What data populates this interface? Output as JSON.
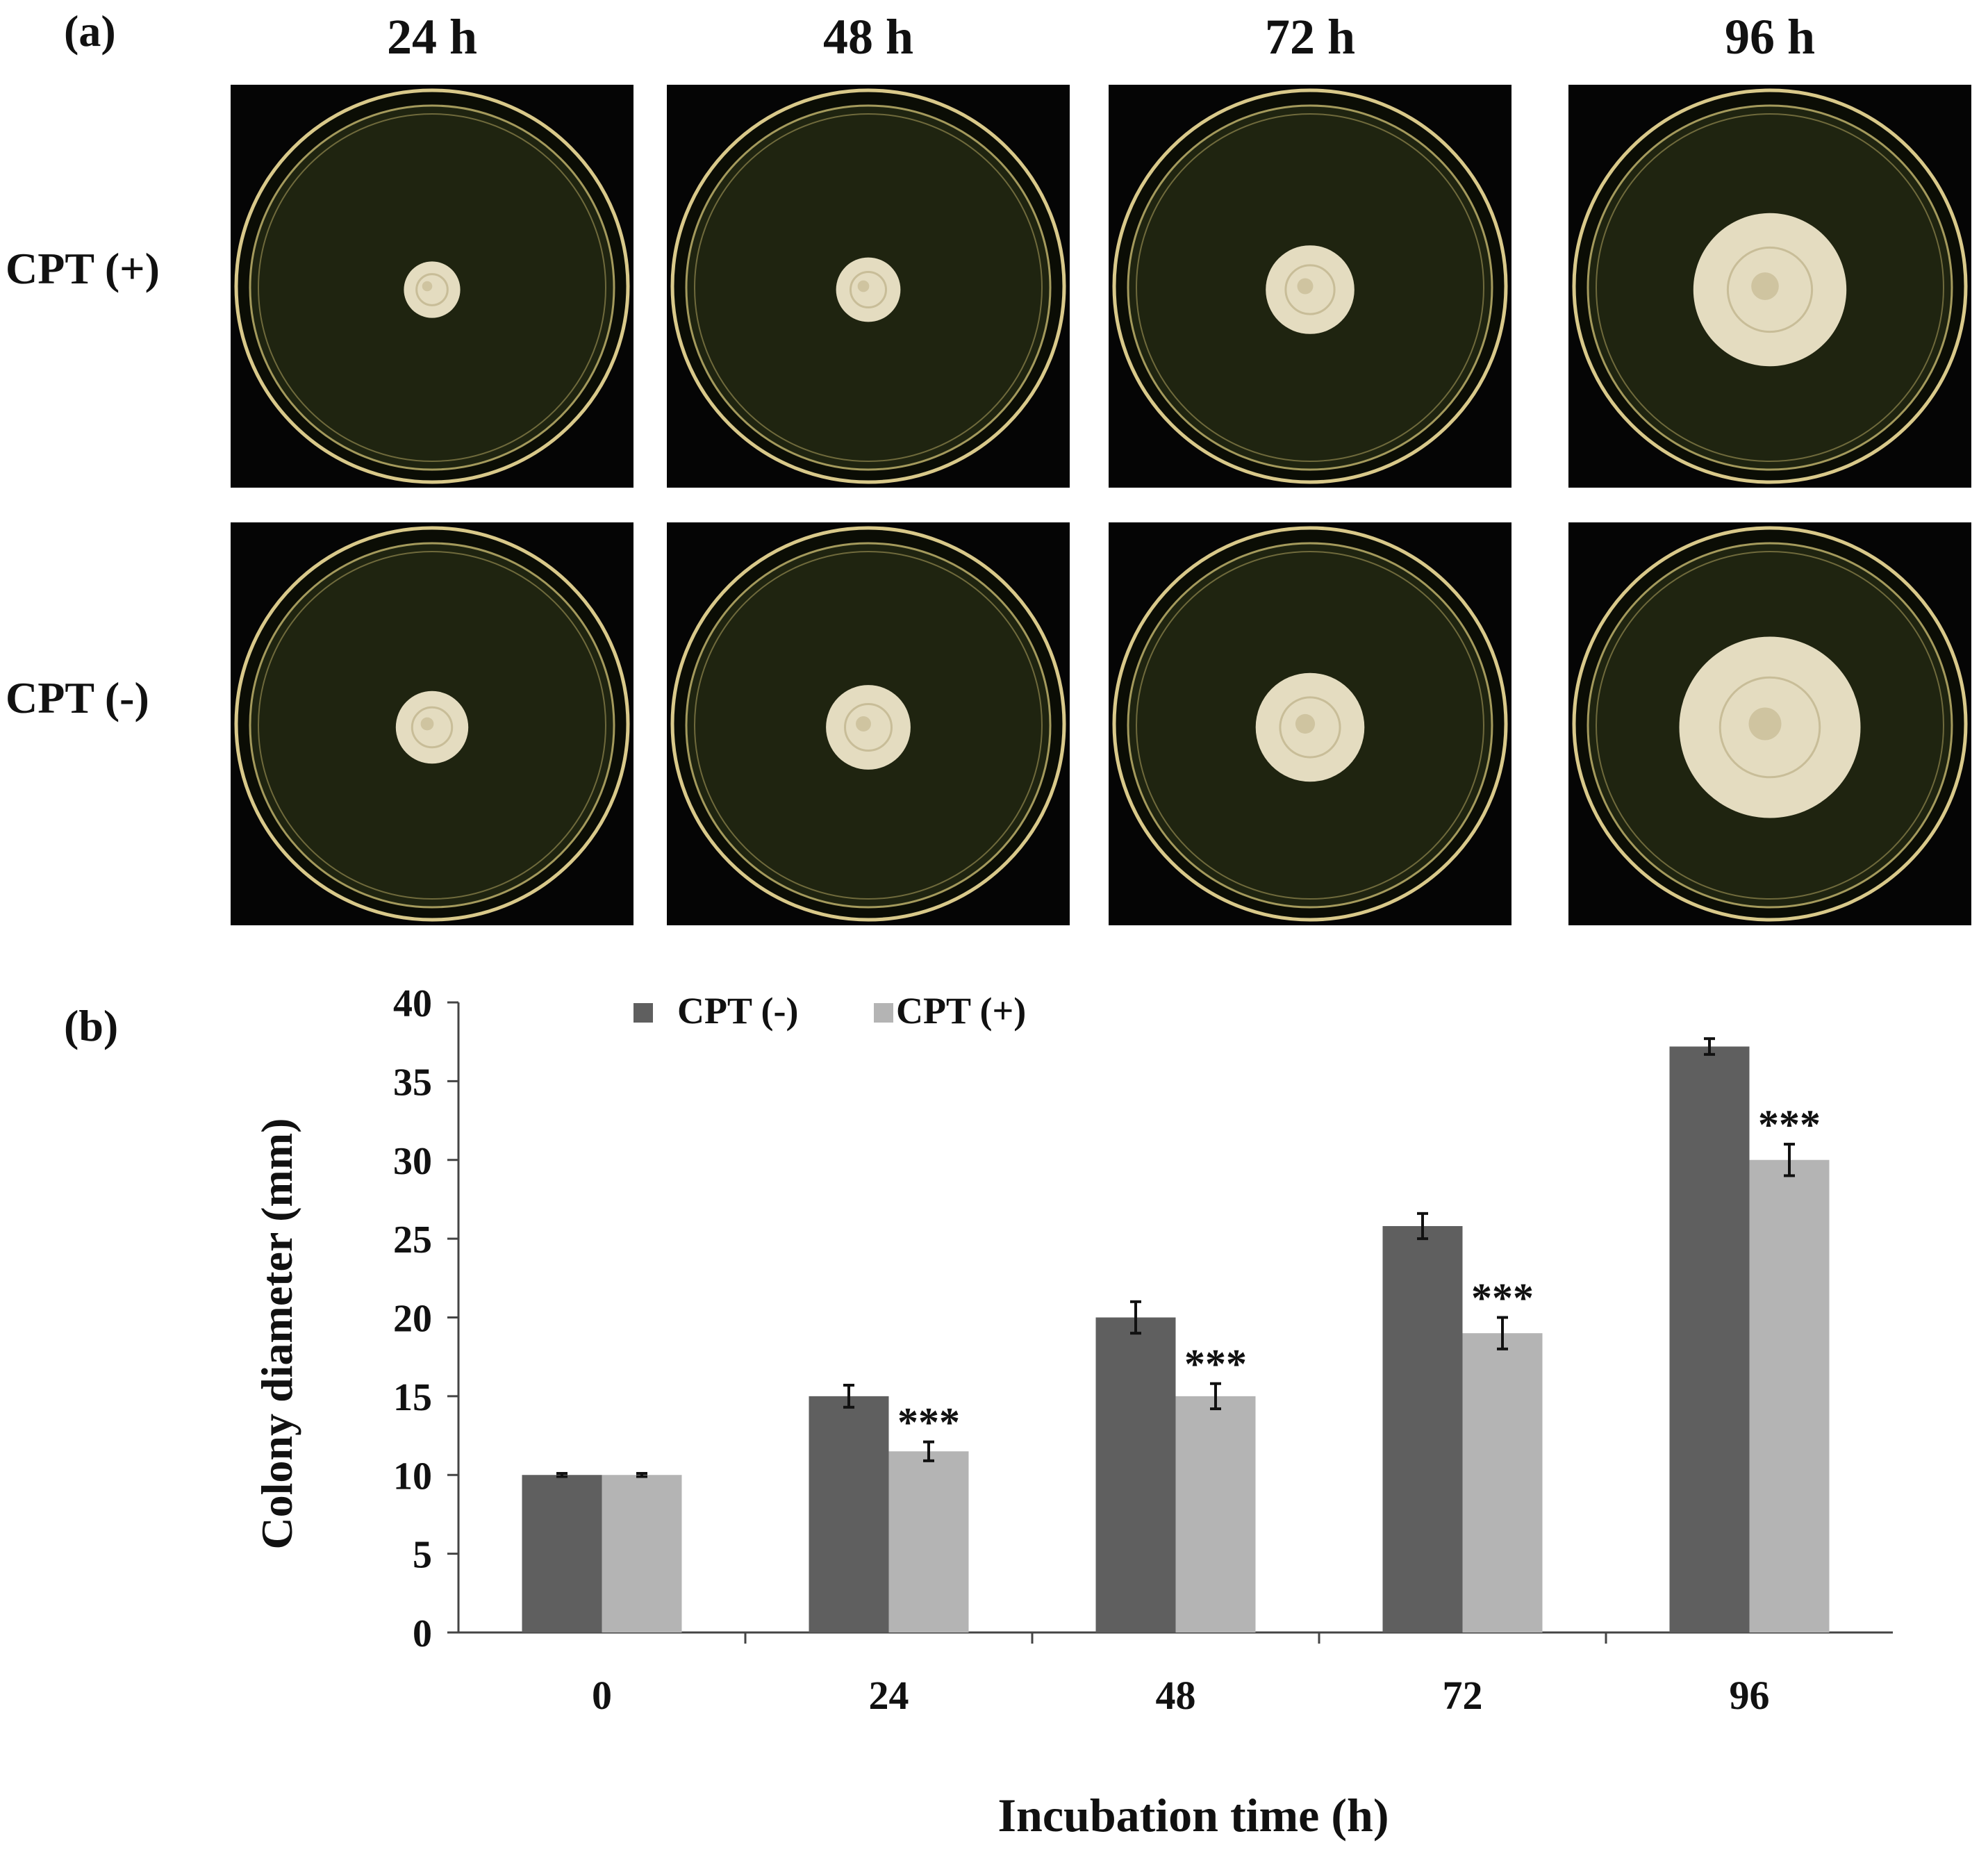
{
  "panel_a": {
    "label": "(a)",
    "columns": [
      "24 h",
      "48 h",
      "72 h",
      "96 h"
    ],
    "rows": [
      {
        "label": "CPT (+)",
        "colony_relative_size": [
          0.14,
          0.16,
          0.22,
          0.38
        ]
      },
      {
        "label": "CPT (-)",
        "colony_relative_size": [
          0.18,
          0.21,
          0.27,
          0.45
        ]
      }
    ]
  },
  "panel_b": {
    "label": "(b)"
  },
  "colors": {
    "cpt_minus": "#5f5f5f",
    "cpt_plus": "#b4b4b4",
    "agar": "#1f2410",
    "rim": "#d9c98a",
    "colony": "#e4dcc0"
  },
  "chart_data": {
    "type": "bar",
    "categories": [
      "0",
      "24",
      "48",
      "72",
      "96"
    ],
    "series": [
      {
        "name": "CPT (-)",
        "values": [
          10,
          15,
          20,
          25.8,
          37.2
        ],
        "errors": [
          0.1,
          0.7,
          1.0,
          0.8,
          0.5
        ]
      },
      {
        "name": "CPT (+)",
        "values": [
          10,
          11.5,
          15,
          19,
          30
        ],
        "errors": [
          0.1,
          0.6,
          0.8,
          1.0,
          1.0
        ]
      }
    ],
    "annotations": [
      "",
      "***",
      "***",
      "***",
      "***"
    ],
    "xlabel": "Incubation time (h)",
    "ylabel": "Colony diameter (mm)",
    "ylim": [
      0,
      40
    ],
    "yticks": [
      0,
      5,
      10,
      15,
      20,
      25,
      30,
      35,
      40
    ],
    "legend": "top-left",
    "grid": false
  }
}
